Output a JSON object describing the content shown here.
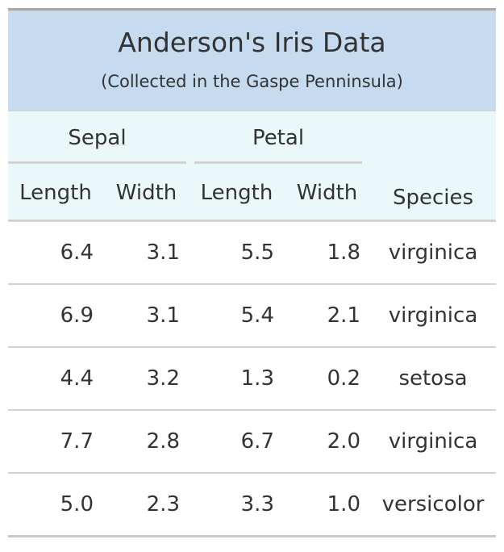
{
  "table": {
    "title": "Anderson's Iris Data",
    "subtitle": "(Collected in the Gaspe Penninsula)",
    "spanners": [
      "Sepal",
      "Petal"
    ],
    "columns": [
      "Length",
      "Width",
      "Length",
      "Width",
      "Species"
    ],
    "rows": [
      {
        "sepal_length": "6.4",
        "sepal_width": "3.1",
        "petal_length": "5.5",
        "petal_width": "1.8",
        "species": "virginica"
      },
      {
        "sepal_length": "6.9",
        "sepal_width": "3.1",
        "petal_length": "5.4",
        "petal_width": "2.1",
        "species": "virginica"
      },
      {
        "sepal_length": "4.4",
        "sepal_width": "3.2",
        "petal_length": "1.3",
        "petal_width": "0.2",
        "species": "setosa"
      },
      {
        "sepal_length": "7.7",
        "sepal_width": "2.8",
        "petal_length": "6.7",
        "petal_width": "2.0",
        "species": "virginica"
      },
      {
        "sepal_length": "5.0",
        "sepal_width": "2.3",
        "petal_length": "3.3",
        "petal_width": "1.0",
        "species": "versicolor"
      }
    ]
  },
  "colors": {
    "title_background": "#c6dbef",
    "header_background": "#ebf8fa",
    "rule": "#d3d3d3",
    "text": "#333333"
  }
}
